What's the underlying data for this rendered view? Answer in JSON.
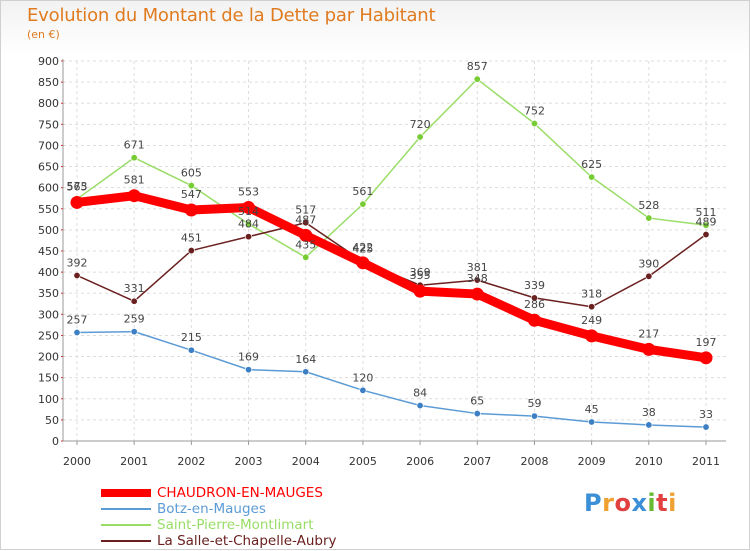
{
  "title": "Evolution du Montant de la Dette par Habitant",
  "unit": "(en €)",
  "brand": {
    "letters": [
      "P",
      "r",
      "o",
      "x",
      "i",
      "t",
      "i"
    ],
    "colors": [
      "#3a8fd6",
      "#f0a030",
      "#e04040",
      "#3a8fd6",
      "#66bb33",
      "#e04040",
      "#f0a030"
    ]
  },
  "chart_data": {
    "type": "line",
    "x": [
      "2000",
      "2001",
      "2002",
      "2003",
      "2004",
      "2005",
      "2006",
      "2007",
      "2008",
      "2009",
      "2010",
      "2011"
    ],
    "ylim": [
      0,
      900
    ],
    "yticks": [
      0,
      50,
      100,
      150,
      200,
      250,
      300,
      350,
      400,
      450,
      500,
      550,
      600,
      650,
      700,
      750,
      800,
      850,
      900
    ],
    "grid": true,
    "legend_position": "bottom-left",
    "series": [
      {
        "name": "Botz-en-Mauges",
        "color": "#5b9bd5",
        "point_color": "#3d7fc4",
        "values": [
          257,
          259,
          215,
          169,
          164,
          120,
          84,
          65,
          59,
          45,
          38,
          33
        ]
      },
      {
        "name": "Saint-Pierre-Montlimart",
        "color": "#99dd66",
        "point_color": "#77cc33",
        "values": [
          573,
          671,
          605,
          514,
          435,
          561,
          720,
          857,
          752,
          625,
          528,
          511
        ]
      },
      {
        "name": "La Salle-et-Chapelle-Aubry",
        "color": "#6b2020",
        "point_color": "#6b2020",
        "values": [
          392,
          331,
          451,
          484,
          517,
          425,
          369,
          381,
          339,
          318,
          390,
          489
        ]
      },
      {
        "name": "CHAUDRON-EN-MAUGES",
        "color": "#ff0000",
        "point_color": "#ff0000",
        "thick": true,
        "values": [
          565,
          581,
          547,
          553,
          487,
          422,
          355,
          348,
          286,
          249,
          217,
          197
        ]
      }
    ],
    "legend_order": [
      "CHAUDRON-EN-MAUGES",
      "Botz-en-Mauges",
      "Saint-Pierre-Montlimart",
      "La Salle-et-Chapelle-Aubry"
    ]
  }
}
